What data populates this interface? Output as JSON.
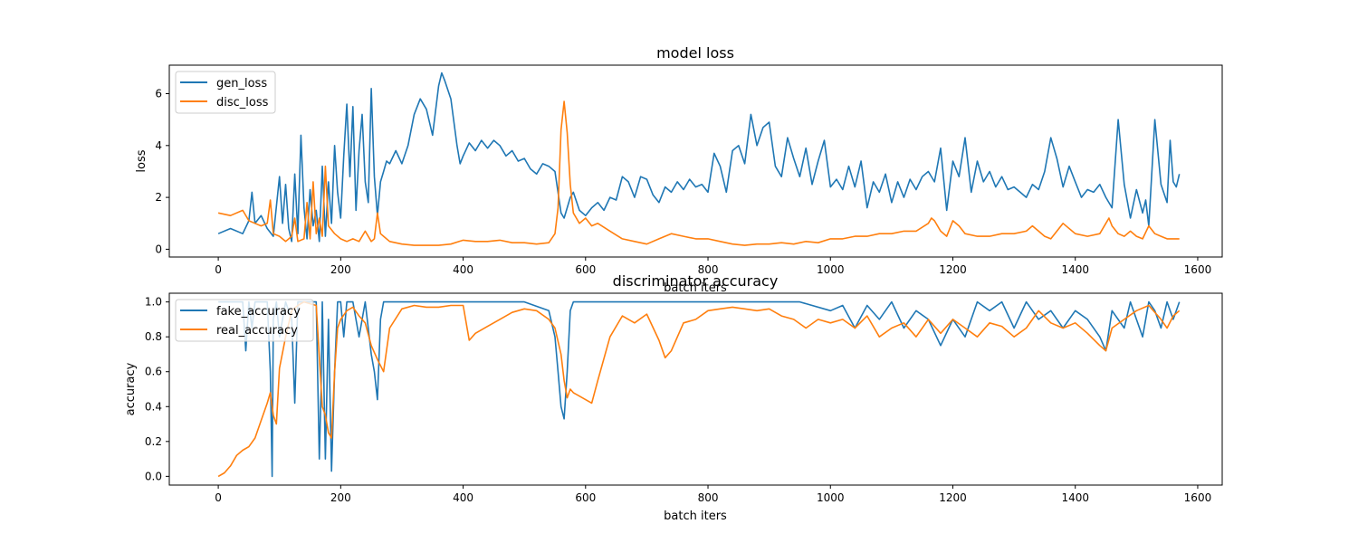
{
  "chart_data": [
    {
      "type": "line",
      "title": "model loss",
      "xlabel": "batch iters",
      "ylabel": "loss",
      "xlim": [
        -80,
        1640
      ],
      "ylim": [
        -0.3,
        7.1
      ],
      "xticks": [
        0,
        200,
        400,
        600,
        800,
        1000,
        1200,
        1400,
        1600
      ],
      "yticks": [
        0,
        2,
        4,
        6
      ],
      "grid": false,
      "legend_position": "top-left",
      "series": [
        {
          "name": "gen_loss",
          "color": "#1f77b4",
          "x": [
            0,
            20,
            40,
            50,
            55,
            60,
            70,
            80,
            90,
            100,
            105,
            110,
            115,
            120,
            125,
            130,
            135,
            140,
            145,
            150,
            155,
            160,
            165,
            170,
            175,
            180,
            185,
            190,
            195,
            200,
            205,
            210,
            215,
            220,
            225,
            230,
            235,
            240,
            245,
            250,
            255,
            260,
            265,
            270,
            275,
            280,
            290,
            300,
            310,
            320,
            330,
            340,
            350,
            360,
            365,
            370,
            380,
            390,
            395,
            400,
            410,
            420,
            430,
            440,
            450,
            460,
            470,
            480,
            490,
            500,
            510,
            520,
            530,
            540,
            550,
            560,
            565,
            570,
            575,
            580,
            590,
            600,
            610,
            620,
            630,
            640,
            650,
            660,
            670,
            680,
            690,
            700,
            710,
            720,
            730,
            740,
            750,
            760,
            770,
            780,
            790,
            800,
            810,
            820,
            830,
            840,
            850,
            860,
            870,
            880,
            890,
            900,
            910,
            920,
            930,
            940,
            950,
            960,
            970,
            980,
            990,
            1000,
            1010,
            1020,
            1030,
            1040,
            1050,
            1060,
            1070,
            1080,
            1090,
            1100,
            1110,
            1120,
            1130,
            1140,
            1150,
            1160,
            1170,
            1180,
            1190,
            1200,
            1210,
            1220,
            1230,
            1240,
            1250,
            1260,
            1270,
            1280,
            1290,
            1300,
            1310,
            1320,
            1330,
            1340,
            1350,
            1360,
            1370,
            1380,
            1390,
            1400,
            1410,
            1420,
            1430,
            1440,
            1450,
            1460,
            1470,
            1480,
            1490,
            1500,
            1510,
            1515,
            1520,
            1530,
            1540,
            1550,
            1555,
            1560,
            1565,
            1570
          ],
          "y": [
            0.6,
            0.8,
            0.6,
            1.1,
            2.2,
            1.0,
            1.3,
            0.8,
            0.5,
            2.8,
            1.0,
            2.5,
            0.8,
            0.3,
            2.9,
            0.6,
            4.4,
            1.6,
            0.4,
            2.3,
            0.9,
            1.5,
            0.3,
            3.2,
            0.5,
            2.6,
            1.0,
            4.0,
            2.2,
            1.2,
            3.6,
            5.6,
            2.8,
            5.5,
            1.5,
            3.8,
            5.2,
            2.6,
            1.8,
            6.2,
            2.8,
            1.3,
            2.6,
            3.0,
            3.4,
            3.3,
            3.8,
            3.3,
            4.0,
            5.2,
            5.8,
            5.4,
            4.4,
            6.3,
            6.8,
            6.5,
            5.8,
            4.0,
            3.3,
            3.6,
            4.1,
            3.8,
            4.2,
            3.9,
            4.2,
            4.0,
            3.6,
            3.8,
            3.4,
            3.5,
            3.1,
            2.9,
            3.3,
            3.2,
            3.0,
            1.4,
            1.2,
            1.6,
            2.0,
            2.2,
            1.5,
            1.3,
            1.6,
            1.8,
            1.5,
            2.0,
            1.9,
            2.8,
            2.6,
            2.0,
            2.8,
            2.7,
            2.1,
            1.8,
            2.4,
            2.2,
            2.6,
            2.3,
            2.7,
            2.4,
            2.5,
            2.2,
            3.7,
            3.2,
            2.2,
            3.8,
            4.0,
            3.3,
            5.2,
            4.0,
            4.7,
            4.9,
            3.2,
            2.8,
            4.3,
            3.5,
            2.8,
            3.9,
            2.5,
            3.4,
            4.2,
            2.4,
            2.7,
            2.3,
            3.2,
            2.4,
            3.4,
            1.6,
            2.6,
            2.2,
            2.9,
            1.8,
            2.6,
            2.0,
            2.7,
            2.3,
            2.8,
            3.0,
            2.6,
            3.9,
            1.5,
            3.4,
            2.8,
            4.3,
            2.2,
            3.4,
            2.6,
            3.0,
            2.4,
            2.8,
            2.3,
            2.4,
            2.2,
            2.0,
            2.5,
            2.3,
            3.0,
            4.3,
            3.5,
            2.4,
            3.2,
            2.6,
            2.0,
            2.3,
            2.2,
            2.5,
            2.0,
            1.6,
            5.0,
            2.5,
            1.2,
            2.3,
            1.4,
            1.9,
            0.9,
            5.0,
            2.5,
            1.8,
            4.2,
            2.6,
            2.4,
            2.9
          ]
        },
        {
          "name": "disc_loss",
          "color": "#ff7f0e",
          "x": [
            0,
            20,
            40,
            50,
            60,
            70,
            80,
            85,
            90,
            100,
            110,
            120,
            125,
            130,
            140,
            145,
            150,
            155,
            160,
            165,
            170,
            175,
            180,
            190,
            200,
            210,
            220,
            230,
            240,
            250,
            255,
            260,
            265,
            270,
            280,
            300,
            320,
            340,
            360,
            380,
            400,
            420,
            440,
            460,
            480,
            500,
            520,
            540,
            550,
            555,
            560,
            565,
            570,
            575,
            580,
            590,
            600,
            610,
            620,
            640,
            660,
            680,
            700,
            720,
            740,
            760,
            780,
            800,
            820,
            840,
            860,
            880,
            900,
            920,
            940,
            960,
            980,
            1000,
            1020,
            1040,
            1060,
            1080,
            1100,
            1120,
            1140,
            1160,
            1165,
            1170,
            1180,
            1190,
            1200,
            1210,
            1220,
            1240,
            1260,
            1280,
            1300,
            1320,
            1330,
            1340,
            1350,
            1360,
            1370,
            1380,
            1400,
            1420,
            1440,
            1450,
            1455,
            1460,
            1470,
            1480,
            1490,
            1500,
            1510,
            1520,
            1530,
            1540,
            1550,
            1560,
            1570
          ],
          "y": [
            1.4,
            1.3,
            1.5,
            1.1,
            1.0,
            0.9,
            1.0,
            1.9,
            0.6,
            0.5,
            0.3,
            0.5,
            1.2,
            0.3,
            0.4,
            1.8,
            0.4,
            2.6,
            0.6,
            1.2,
            0.5,
            3.2,
            0.9,
            0.6,
            0.4,
            0.3,
            0.4,
            0.3,
            0.7,
            0.3,
            0.4,
            1.4,
            0.6,
            0.5,
            0.3,
            0.2,
            0.15,
            0.15,
            0.15,
            0.2,
            0.35,
            0.3,
            0.3,
            0.35,
            0.25,
            0.25,
            0.2,
            0.25,
            0.6,
            1.6,
            4.6,
            5.7,
            4.5,
            2.5,
            1.4,
            1.0,
            1.2,
            0.9,
            1.0,
            0.7,
            0.4,
            0.3,
            0.2,
            0.4,
            0.6,
            0.5,
            0.4,
            0.4,
            0.3,
            0.2,
            0.15,
            0.2,
            0.2,
            0.25,
            0.2,
            0.3,
            0.25,
            0.4,
            0.4,
            0.5,
            0.5,
            0.6,
            0.6,
            0.7,
            0.7,
            1.0,
            1.2,
            1.1,
            0.7,
            0.5,
            1.1,
            0.9,
            0.6,
            0.5,
            0.5,
            0.6,
            0.6,
            0.7,
            0.9,
            0.7,
            0.5,
            0.4,
            0.7,
            1.0,
            0.6,
            0.5,
            0.6,
            1.0,
            1.2,
            0.9,
            0.6,
            0.5,
            0.7,
            0.5,
            0.4,
            0.9,
            0.6,
            0.5,
            0.4,
            0.4,
            0.4
          ]
        }
      ]
    },
    {
      "type": "line",
      "title": "discriminator accuracy",
      "xlabel": "batch iters",
      "ylabel": "accuracy",
      "xlim": [
        -80,
        1640
      ],
      "ylim": [
        -0.05,
        1.05
      ],
      "xticks": [
        0,
        200,
        400,
        600,
        800,
        1000,
        1200,
        1400,
        1600
      ],
      "yticks": [
        0.0,
        0.2,
        0.4,
        0.6,
        0.8,
        1.0
      ],
      "grid": false,
      "legend_position": "top-left",
      "series": [
        {
          "name": "fake_accuracy",
          "color": "#1f77b4",
          "x": [
            0,
            20,
            40,
            45,
            50,
            55,
            60,
            70,
            80,
            85,
            88,
            90,
            95,
            100,
            110,
            120,
            125,
            130,
            140,
            150,
            160,
            165,
            168,
            170,
            175,
            180,
            185,
            190,
            195,
            200,
            205,
            210,
            220,
            230,
            240,
            250,
            255,
            260,
            265,
            270,
            280,
            300,
            350,
            400,
            450,
            500,
            540,
            550,
            555,
            560,
            565,
            570,
            575,
            580,
            600,
            650,
            700,
            750,
            800,
            850,
            900,
            950,
            1000,
            1020,
            1040,
            1060,
            1080,
            1100,
            1120,
            1140,
            1160,
            1180,
            1200,
            1220,
            1240,
            1260,
            1280,
            1300,
            1320,
            1340,
            1360,
            1380,
            1400,
            1420,
            1440,
            1450,
            1460,
            1480,
            1490,
            1500,
            1510,
            1520,
            1530,
            1540,
            1550,
            1560,
            1570
          ],
          "y": [
            1.0,
            1.0,
            1.0,
            0.72,
            1.0,
            0.85,
            1.0,
            1.0,
            1.0,
            0.6,
            0.0,
            0.9,
            1.0,
            0.8,
            1.0,
            0.9,
            0.42,
            1.0,
            1.0,
            1.0,
            1.0,
            0.1,
            0.5,
            1.0,
            0.1,
            0.9,
            0.03,
            0.6,
            1.0,
            1.0,
            0.8,
            1.0,
            1.0,
            0.8,
            1.0,
            0.7,
            0.6,
            0.44,
            0.9,
            1.0,
            1.0,
            1.0,
            1.0,
            1.0,
            1.0,
            1.0,
            0.95,
            0.8,
            0.6,
            0.4,
            0.33,
            0.6,
            0.95,
            1.0,
            1.0,
            1.0,
            1.0,
            1.0,
            1.0,
            1.0,
            1.0,
            1.0,
            0.95,
            0.98,
            0.85,
            0.98,
            0.9,
            1.0,
            0.85,
            0.95,
            0.9,
            0.75,
            0.9,
            0.8,
            1.0,
            0.95,
            1.0,
            0.85,
            1.0,
            0.9,
            0.95,
            0.85,
            0.95,
            0.9,
            0.8,
            0.72,
            0.95,
            0.85,
            1.0,
            0.9,
            0.8,
            1.0,
            0.95,
            0.85,
            1.0,
            0.9,
            1.0
          ]
        },
        {
          "name": "real_accuracy",
          "color": "#ff7f0e",
          "x": [
            0,
            10,
            20,
            30,
            40,
            50,
            60,
            70,
            80,
            85,
            90,
            95,
            100,
            110,
            120,
            130,
            140,
            150,
            160,
            170,
            175,
            180,
            185,
            190,
            195,
            200,
            210,
            220,
            230,
            240,
            250,
            260,
            270,
            280,
            300,
            320,
            340,
            360,
            380,
            400,
            410,
            420,
            440,
            460,
            480,
            500,
            520,
            540,
            550,
            560,
            565,
            570,
            575,
            580,
            590,
            600,
            610,
            620,
            640,
            660,
            680,
            700,
            720,
            730,
            740,
            760,
            780,
            800,
            820,
            840,
            860,
            880,
            900,
            920,
            940,
            960,
            980,
            1000,
            1020,
            1040,
            1060,
            1080,
            1100,
            1120,
            1140,
            1160,
            1180,
            1200,
            1220,
            1240,
            1260,
            1280,
            1300,
            1320,
            1340,
            1360,
            1380,
            1400,
            1420,
            1440,
            1450,
            1460,
            1480,
            1500,
            1520,
            1540,
            1550,
            1560,
            1570
          ],
          "y": [
            0.0,
            0.02,
            0.06,
            0.12,
            0.15,
            0.17,
            0.22,
            0.32,
            0.42,
            0.48,
            0.35,
            0.3,
            0.62,
            0.8,
            0.95,
            0.98,
            1.0,
            0.99,
            0.98,
            0.4,
            0.35,
            0.25,
            0.22,
            0.6,
            0.85,
            0.9,
            0.95,
            0.97,
            0.92,
            0.88,
            0.75,
            0.67,
            0.6,
            0.85,
            0.96,
            0.98,
            0.97,
            0.97,
            0.98,
            0.98,
            0.78,
            0.82,
            0.86,
            0.9,
            0.94,
            0.96,
            0.95,
            0.9,
            0.85,
            0.7,
            0.55,
            0.45,
            0.5,
            0.48,
            0.46,
            0.44,
            0.42,
            0.55,
            0.8,
            0.92,
            0.88,
            0.93,
            0.78,
            0.68,
            0.72,
            0.88,
            0.9,
            0.95,
            0.96,
            0.97,
            0.96,
            0.95,
            0.96,
            0.92,
            0.9,
            0.85,
            0.9,
            0.88,
            0.9,
            0.85,
            0.92,
            0.8,
            0.85,
            0.88,
            0.8,
            0.9,
            0.82,
            0.9,
            0.85,
            0.8,
            0.88,
            0.86,
            0.8,
            0.85,
            0.95,
            0.88,
            0.85,
            0.88,
            0.82,
            0.75,
            0.72,
            0.85,
            0.9,
            0.95,
            0.98,
            0.9,
            0.85,
            0.92,
            0.95
          ]
        }
      ]
    }
  ]
}
